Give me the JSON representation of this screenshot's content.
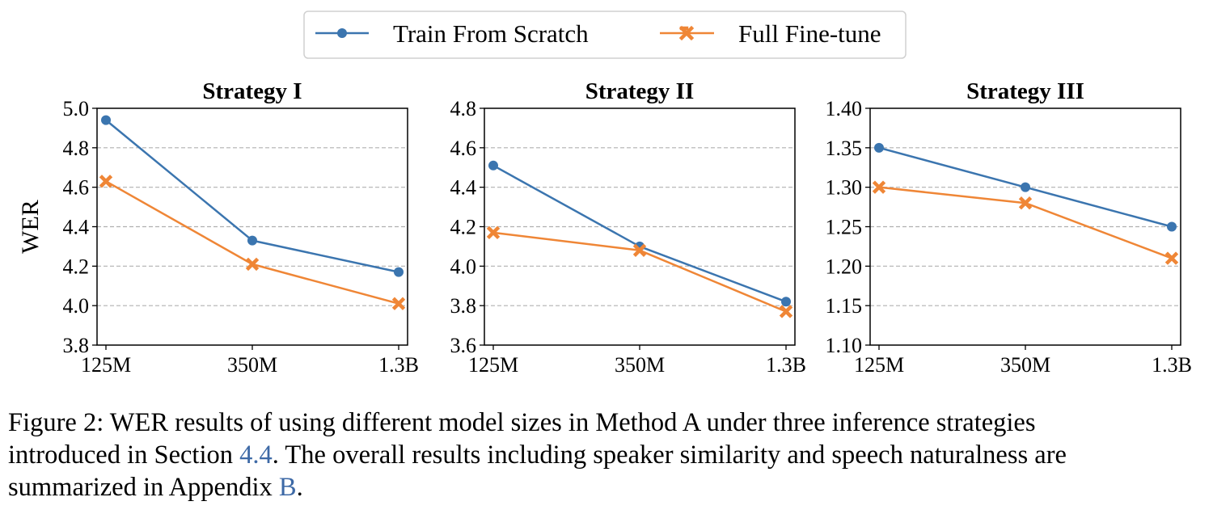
{
  "legend": {
    "entries": [
      {
        "label": "Train From Scratch",
        "color": "#3b75af",
        "marker": "circle"
      },
      {
        "label": "Full Fine-tune",
        "color": "#ef8636",
        "marker": "x"
      }
    ]
  },
  "colors": {
    "series_1": "#3b75af",
    "series_2": "#ef8636",
    "grid": "#b0b0b0",
    "link": "#3d69a6"
  },
  "chart_data": [
    {
      "type": "line",
      "title": "Strategy I",
      "xlabel": "",
      "ylabel": "WER",
      "categories": [
        "125M",
        "350M",
        "1.3B"
      ],
      "ylim": [
        3.8,
        5.0
      ],
      "yticks": [
        "3.8",
        "4.0",
        "4.2",
        "4.4",
        "4.6",
        "4.8",
        "5.0"
      ],
      "grid": "y-dashed",
      "series": [
        {
          "name": "Train From Scratch",
          "values": [
            4.94,
            4.33,
            4.17
          ]
        },
        {
          "name": "Full Fine-tune",
          "values": [
            4.63,
            4.21,
            4.01
          ]
        }
      ]
    },
    {
      "type": "line",
      "title": "Strategy II",
      "xlabel": "",
      "ylabel": "",
      "categories": [
        "125M",
        "350M",
        "1.3B"
      ],
      "ylim": [
        3.6,
        4.8
      ],
      "yticks": [
        "3.6",
        "3.8",
        "4.0",
        "4.2",
        "4.4",
        "4.6",
        "4.8"
      ],
      "grid": "y-dashed",
      "series": [
        {
          "name": "Train From Scratch",
          "values": [
            4.51,
            4.1,
            3.82
          ]
        },
        {
          "name": "Full Fine-tune",
          "values": [
            4.17,
            4.08,
            3.77
          ]
        }
      ]
    },
    {
      "type": "line",
      "title": "Strategy III",
      "xlabel": "",
      "ylabel": "",
      "categories": [
        "125M",
        "350M",
        "1.3B"
      ],
      "ylim": [
        1.1,
        1.4
      ],
      "yticks": [
        "1.10",
        "1.15",
        "1.20",
        "1.25",
        "1.30",
        "1.35",
        "1.40"
      ],
      "grid": "y-dashed",
      "series": [
        {
          "name": "Train From Scratch",
          "values": [
            1.35,
            1.3,
            1.25
          ]
        },
        {
          "name": "Full Fine-tune",
          "values": [
            1.3,
            1.28,
            1.21
          ]
        }
      ]
    }
  ],
  "caption": {
    "line1": "Figure 2: WER results of using different model sizes in Method A under three inference strategies",
    "line2_pre": "introduced in Section ",
    "line2_ref": "4.4",
    "line2_post": ". The overall results including speaker similarity and speech naturalness are",
    "line3_pre": "summarized in Appendix ",
    "line3_ref": "B",
    "line3_post": "."
  }
}
